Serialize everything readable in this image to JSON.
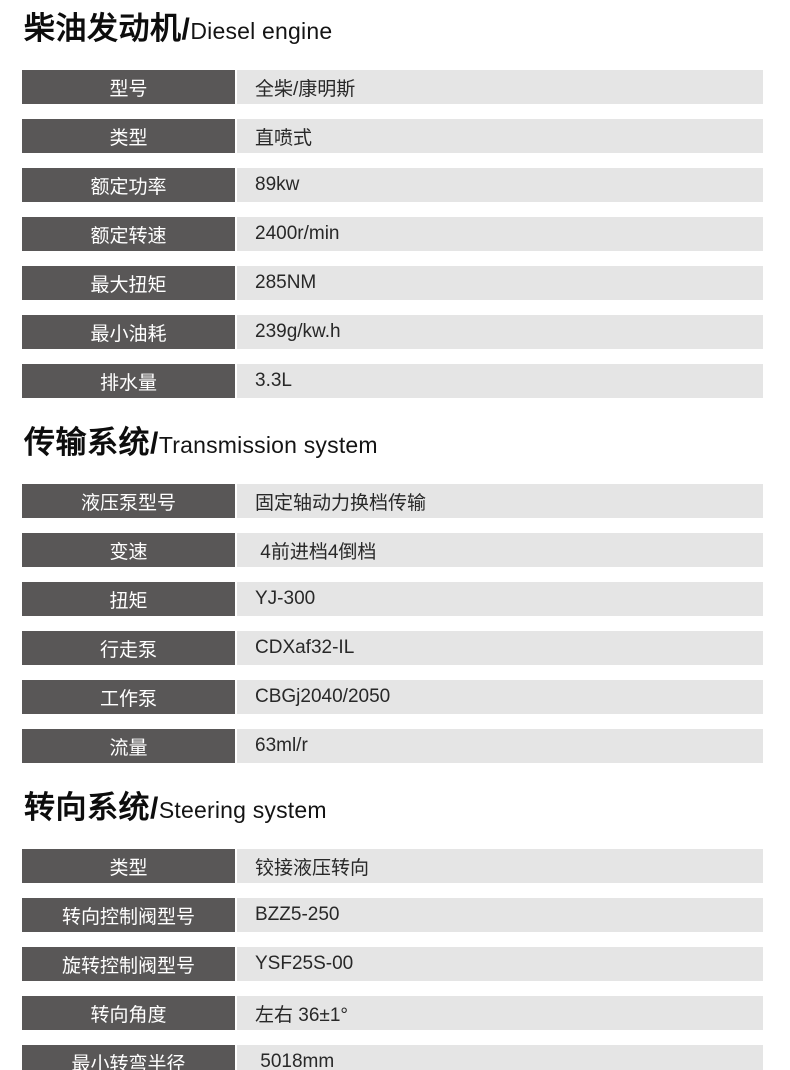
{
  "colors": {
    "label_bg": "#595757",
    "label_text": "#ffffff",
    "value_bg": "#e5e5e5",
    "value_text": "#282828",
    "title_text": "#0d0d0d",
    "page_bg": "#ffffff"
  },
  "sections": [
    {
      "title": {
        "zh": "柴油发动机",
        "sep": "/",
        "en": "Diesel engine"
      },
      "rows": [
        {
          "label": "型号",
          "value": "全柴/康明斯"
        },
        {
          "label": "类型",
          "value": "直喷式"
        },
        {
          "label": "额定功率",
          "value": "89kw"
        },
        {
          "label": "额定转速",
          "value": "2400r/min"
        },
        {
          "label": "最大扭矩",
          "value": "285NM"
        },
        {
          "label": "最小油耗",
          "value": "239g/kw.h"
        },
        {
          "label": "排水量",
          "value": "3.3L"
        }
      ]
    },
    {
      "title": {
        "zh": "传输系统",
        "sep": "/",
        "en": "Transmission system"
      },
      "rows": [
        {
          "label": "液压泵型号",
          "value": "固定轴动力换档传输"
        },
        {
          "label": "变速",
          "value": " 4前进档4倒档"
        },
        {
          "label": "扭矩",
          "value": "YJ-300"
        },
        {
          "label": "行走泵",
          "value": "CDXaf32-IL"
        },
        {
          "label": "工作泵",
          "value": "CBGj2040/2050"
        },
        {
          "label": "流量",
          "value": "63ml/r"
        }
      ]
    },
    {
      "title": {
        "zh": "转向系统",
        "sep": "/",
        "en": "Steering system"
      },
      "rows": [
        {
          "label": "类型",
          "value": "铰接液压转向"
        },
        {
          "label": "转向控制阀型号",
          "value": "BZZ5-250"
        },
        {
          "label": "旋转控制阀型号",
          "value": "YSF25S-00"
        },
        {
          "label": "转向角度",
          "value": "左右 36±1°"
        },
        {
          "label": "最小转弯半径",
          "value": " 5018mm"
        }
      ]
    }
  ]
}
